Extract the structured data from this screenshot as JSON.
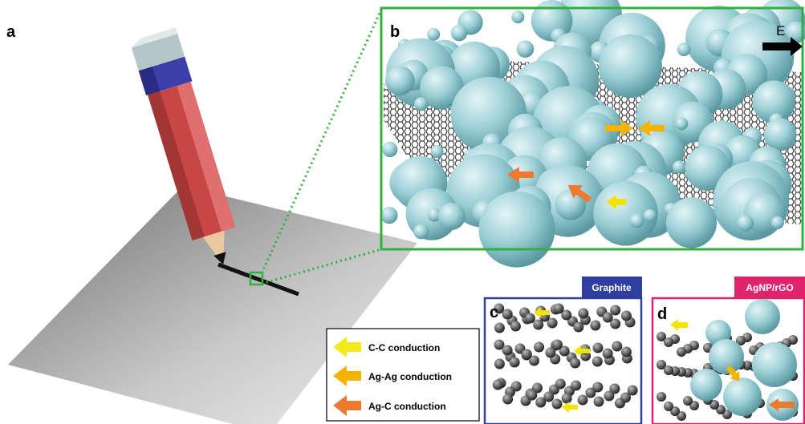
{
  "panels": [
    {
      "label": "a"
    },
    {
      "label": "b",
      "field": "E"
    },
    {
      "label": "c",
      "title": "Graphite"
    },
    {
      "label": "d",
      "title": "AgNP/rGO"
    }
  ],
  "legend": [
    {
      "label": "C-C conduction"
    },
    {
      "label": "Ag-Ag conduction"
    },
    {
      "label": "Ag-C conduction"
    }
  ]
}
